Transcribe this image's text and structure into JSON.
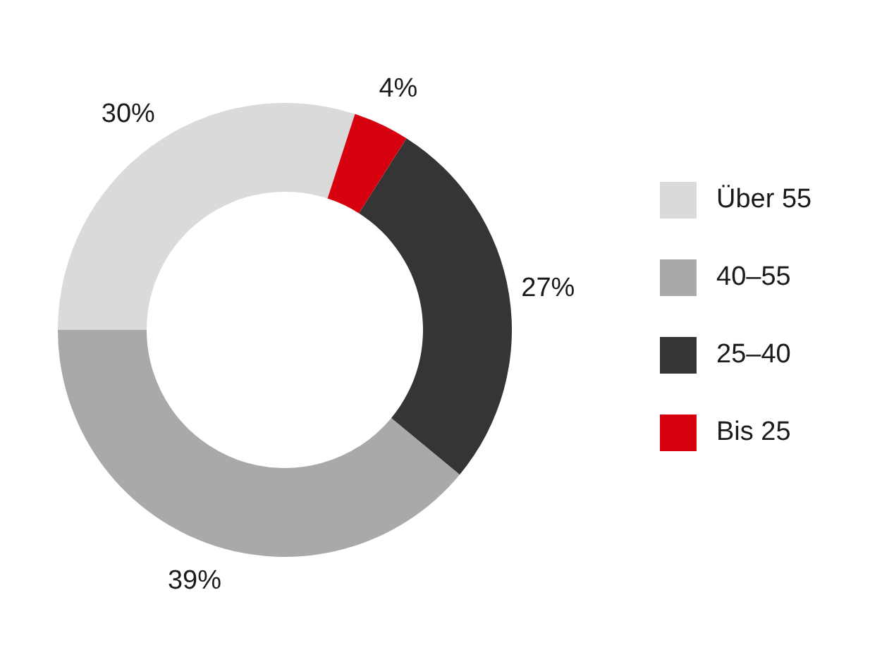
{
  "chart_data": {
    "type": "donut",
    "categories": [
      "Über 55",
      "40–55",
      "25–40",
      "Bis 25"
    ],
    "values": [
      30,
      39,
      27,
      4
    ],
    "colors": [
      "#d9dad9",
      "#a8a9a8",
      "#353535",
      "#d7000f"
    ],
    "value_labels": [
      "30%",
      "39%",
      "27%",
      "4%"
    ],
    "legend": "right"
  }
}
